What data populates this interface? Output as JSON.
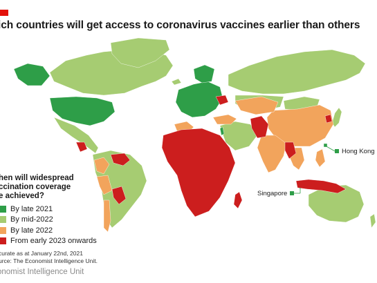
{
  "title": "ich countries will get access to coronavirus vaccines earlier than others",
  "colors": {
    "by_late_2021": "#2e9e48",
    "by_mid_2022": "#a6cc72",
    "by_late_2022": "#f2a45c",
    "early_2023": "#cc1e1e",
    "brand": "#e3120b"
  },
  "legend": {
    "question_lines": [
      "hen will widespread",
      "ccination coverage",
      "e achieved?"
    ],
    "items": [
      {
        "label": "By late 2021",
        "color": "#2e9e48"
      },
      {
        "label": "By mid-2022",
        "color": "#a6cc72"
      },
      {
        "label": "By late 2022",
        "color": "#f2a45c"
      },
      {
        "label": "From early 2023 onwards",
        "color": "#cc1e1e"
      }
    ]
  },
  "annotations": {
    "hong_kong": "Hong Kong",
    "singapore": "Singapore"
  },
  "note_lines": [
    "curate as at January 22nd, 2021",
    "urce: The Economist Intelligence Unit."
  ],
  "footer": "onomist Intelligence Unit"
}
